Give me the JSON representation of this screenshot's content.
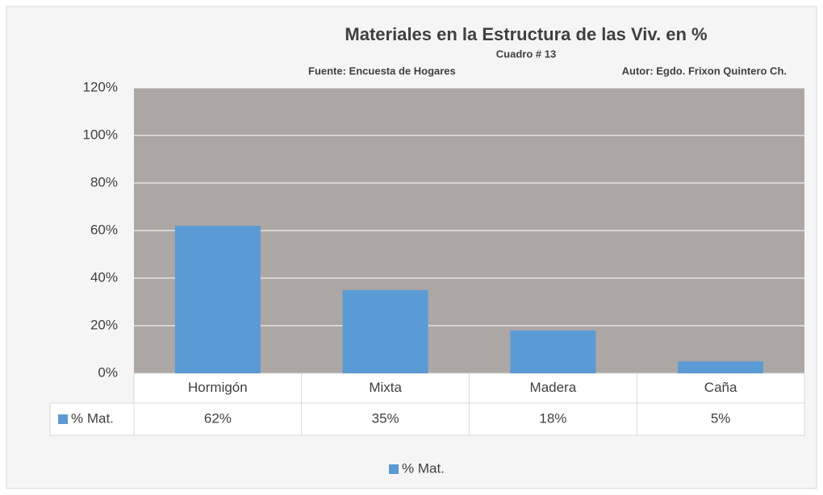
{
  "chart_data": {
    "type": "bar",
    "title": "Materiales en la Estructura de las Viv. en %",
    "subtitle": "Cuadro # 13",
    "annotations": [
      "Fuente: Encuesta de Hogares",
      "Autor: Egdo. Frixon Quintero Ch."
    ],
    "categories": [
      "Hormigón",
      "Mixta",
      "Madera",
      "Caña"
    ],
    "series": [
      {
        "name": "% Mat.",
        "color": "#5b9bd5",
        "values": [
          62,
          35,
          18,
          5
        ],
        "value_labels": [
          "62%",
          "35%",
          "18%",
          "5%"
        ]
      }
    ],
    "ylim": [
      0,
      120
    ],
    "yticks": [
      {
        "value": 0,
        "label": "0%"
      },
      {
        "value": 20,
        "label": "20%"
      },
      {
        "value": 40,
        "label": "40%"
      },
      {
        "value": 60,
        "label": "60%"
      },
      {
        "value": 80,
        "label": "80%"
      },
      {
        "value": 100,
        "label": "100%"
      },
      {
        "value": 120,
        "label": "120%"
      }
    ],
    "grid": true,
    "legend": "bottom"
  }
}
